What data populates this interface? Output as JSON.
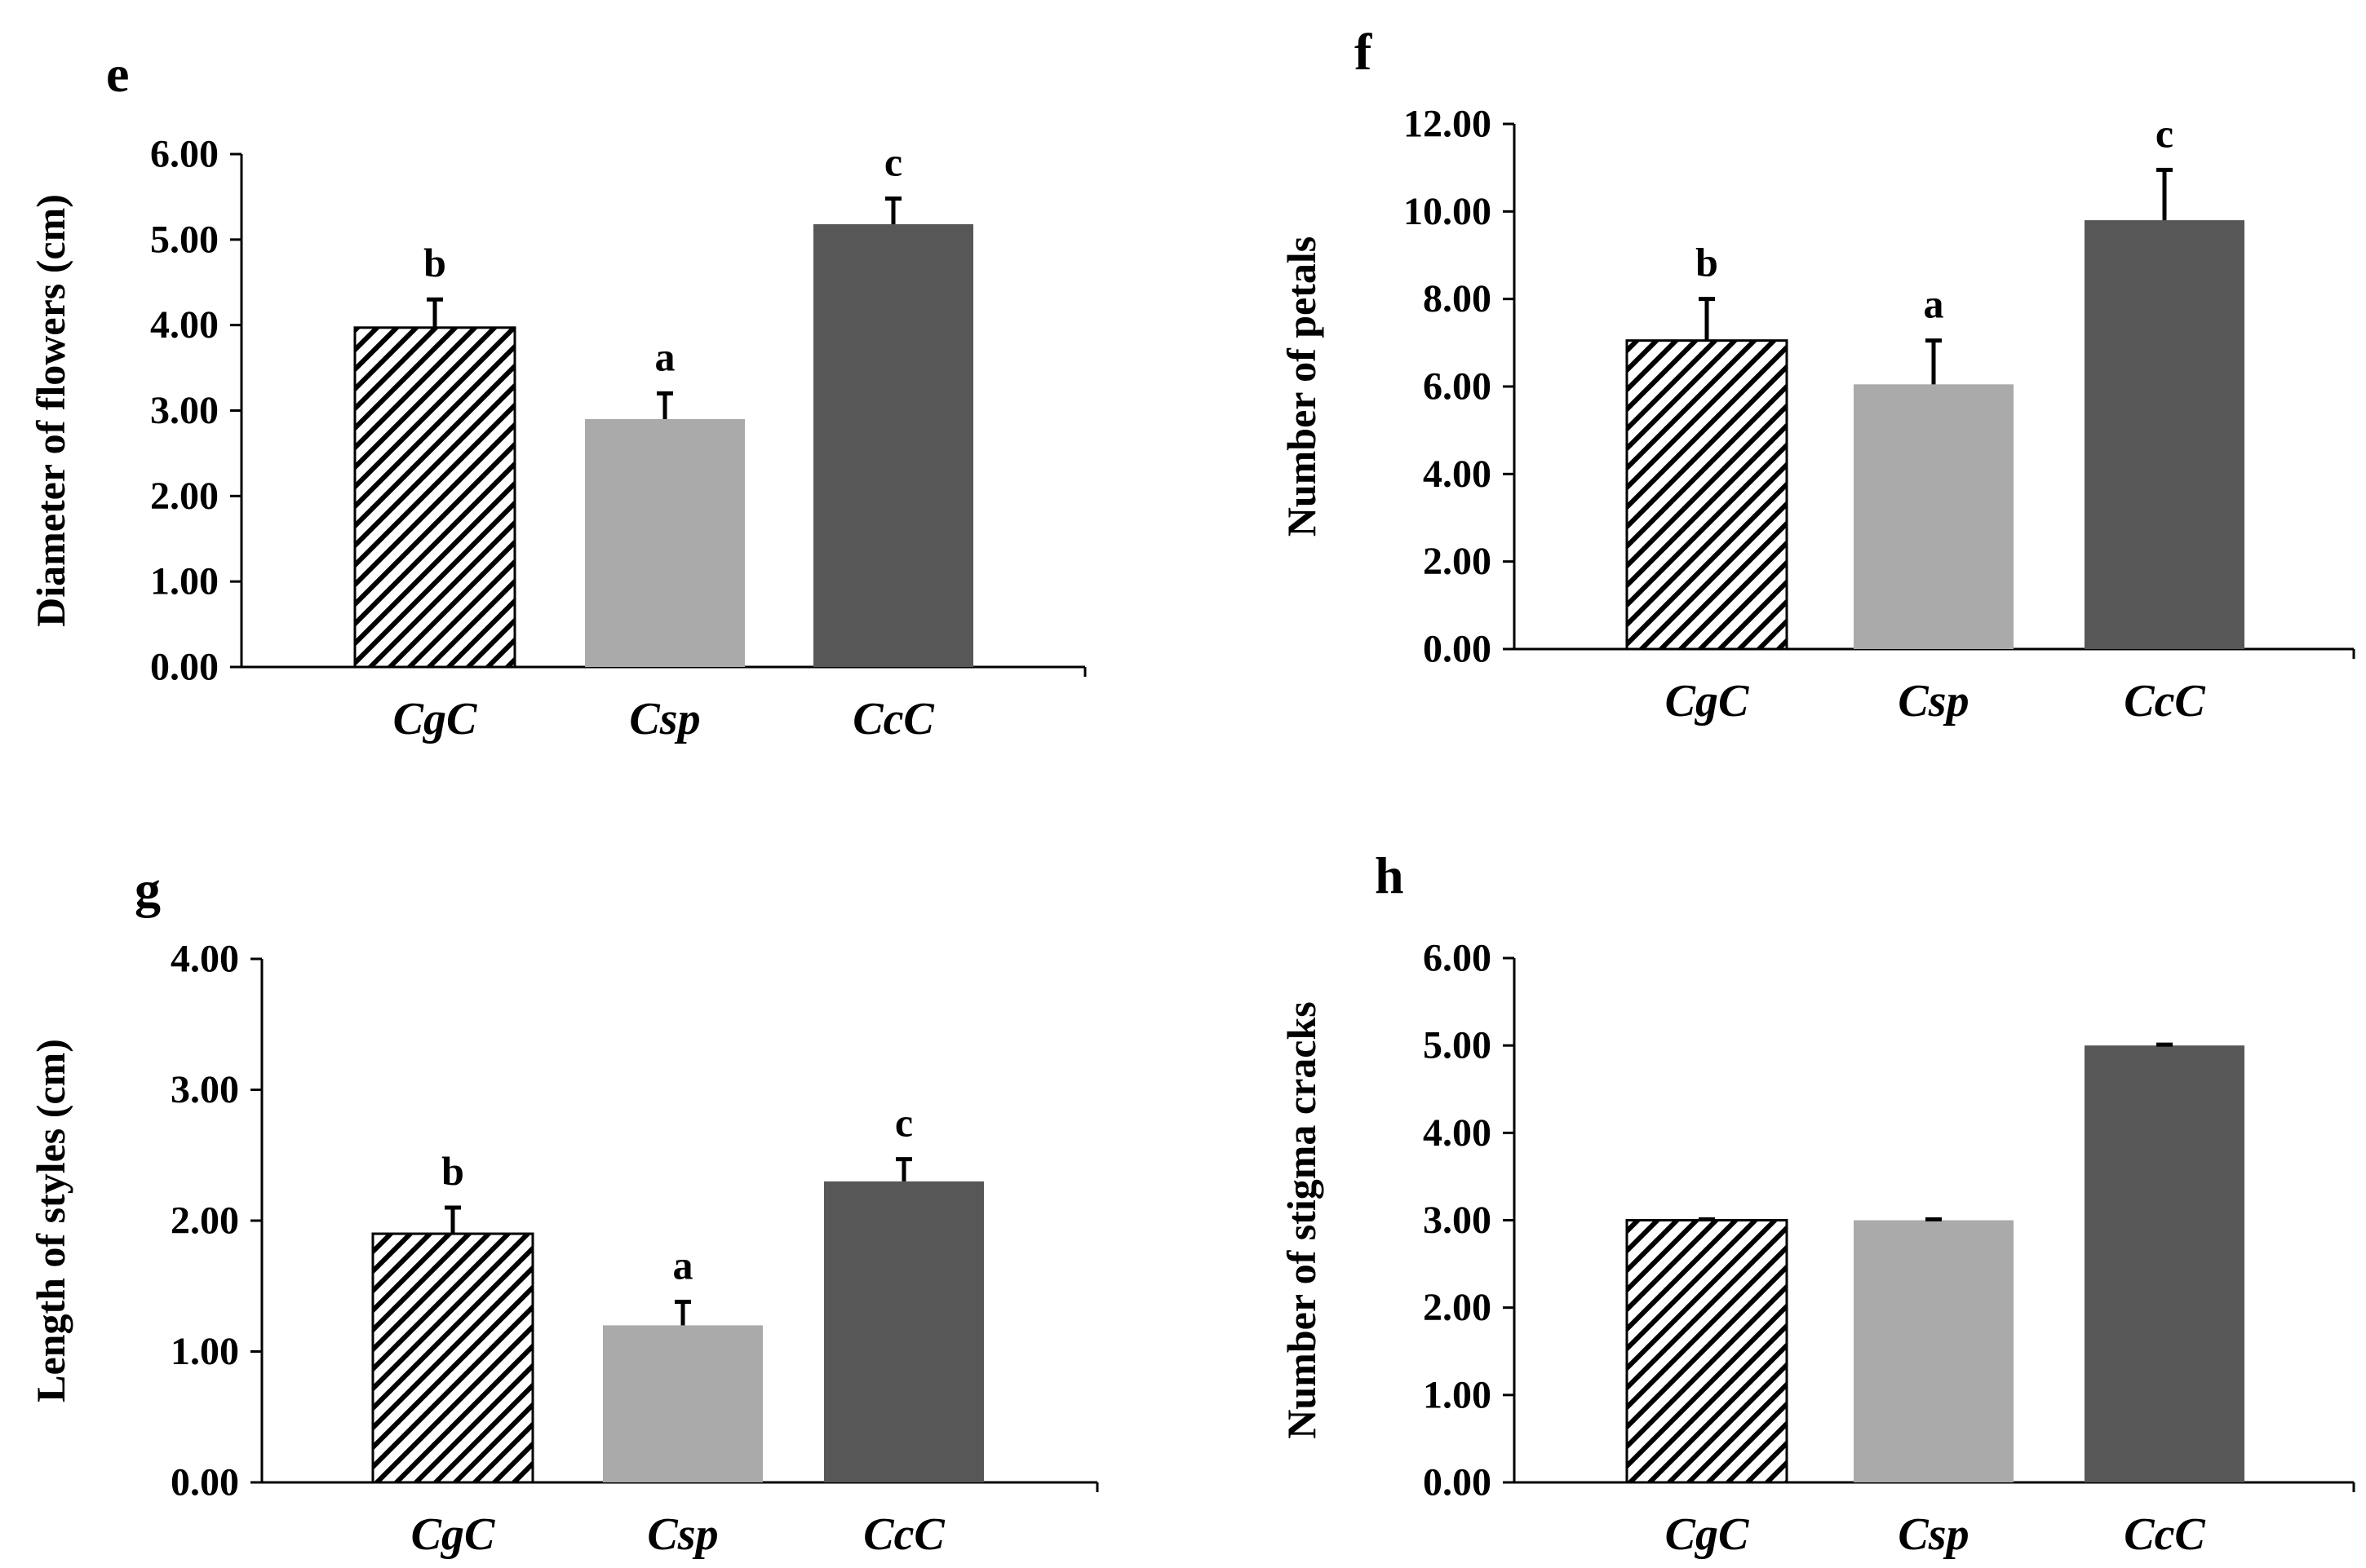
{
  "figure": {
    "patterns": {
      "hatch": "diagonal-hatch-black-white"
    },
    "colors": {
      "CgC": "#ffffff",
      "Csp": "#aaaaaa",
      "CcC": "#575757",
      "axis": "#000000"
    }
  },
  "chart_data": [
    {
      "panel": "e",
      "type": "bar",
      "title": "",
      "xlabel": "",
      "ylabel": "Diameter of flowers (cm)",
      "categories": [
        "CgC",
        "Csp",
        "CcC"
      ],
      "values": [
        3.97,
        2.9,
        5.18
      ],
      "errors": [
        0.33,
        0.3,
        0.3
      ],
      "significance": [
        "b",
        "a",
        "c"
      ],
      "ylim": [
        0,
        6
      ],
      "yticks": [
        "0.00",
        "1.00",
        "2.00",
        "3.00",
        "4.00",
        "5.00",
        "6.00"
      ]
    },
    {
      "panel": "f",
      "type": "bar",
      "title": "",
      "xlabel": "",
      "ylabel": "Number of petals",
      "categories": [
        "CgC",
        "Csp",
        "CcC"
      ],
      "values": [
        7.05,
        6.05,
        9.8
      ],
      "errors": [
        0.95,
        1.0,
        1.15
      ],
      "significance": [
        "b",
        "a",
        "c"
      ],
      "ylim": [
        0,
        12
      ],
      "yticks": [
        "0.00",
        "2.00",
        "4.00",
        "6.00",
        "8.00",
        "10.00",
        "12.00"
      ]
    },
    {
      "panel": "g",
      "type": "bar",
      "title": "",
      "xlabel": "",
      "ylabel": "Length of styles (cm)",
      "categories": [
        "CgC",
        "Csp",
        "CcC"
      ],
      "values": [
        1.9,
        1.2,
        2.3
      ],
      "errors": [
        0.2,
        0.18,
        0.17
      ],
      "significance": [
        "b",
        "a",
        "c"
      ],
      "ylim": [
        0,
        4
      ],
      "yticks": [
        "0.00",
        "1.00",
        "2.00",
        "3.00",
        "4.00"
      ]
    },
    {
      "panel": "h",
      "type": "bar",
      "title": "",
      "xlabel": "",
      "ylabel": "Number of stigma cracks",
      "categories": [
        "CgC",
        "Csp",
        "CcC"
      ],
      "values": [
        3.0,
        3.0,
        5.0
      ],
      "errors": [
        0.01,
        0.01,
        0.01
      ],
      "significance": [
        "",
        "",
        ""
      ],
      "ylim": [
        0,
        6
      ],
      "yticks": [
        "0.00",
        "1.00",
        "2.00",
        "3.00",
        "4.00",
        "5.00",
        "6.00"
      ]
    }
  ]
}
